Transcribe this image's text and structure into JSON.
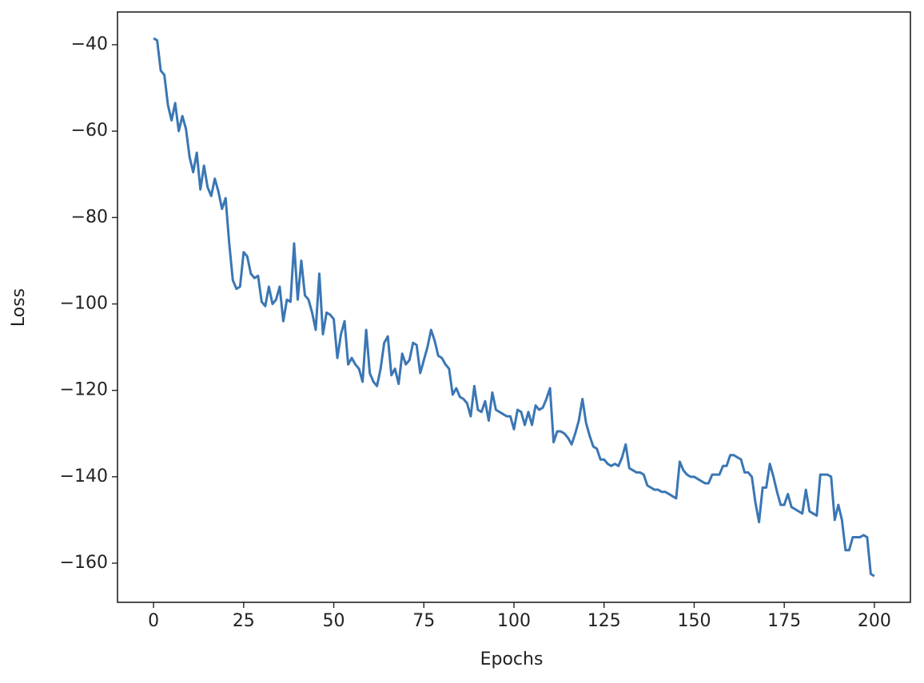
{
  "chart_data": {
    "type": "line",
    "x_label": "Epochs",
    "y_label": "Loss",
    "x": [
      0,
      1,
      2,
      3,
      4,
      5,
      6,
      7,
      8,
      9,
      10,
      11,
      12,
      13,
      14,
      15,
      16,
      17,
      18,
      19,
      20,
      21,
      22,
      23,
      24,
      25,
      26,
      27,
      28,
      29,
      30,
      31,
      32,
      33,
      34,
      35,
      36,
      37,
      38,
      39,
      40,
      41,
      42,
      43,
      44,
      45,
      46,
      47,
      48,
      49,
      50,
      51,
      52,
      53,
      54,
      55,
      56,
      57,
      58,
      59,
      60,
      61,
      62,
      63,
      64,
      65,
      66,
      67,
      68,
      69,
      70,
      71,
      72,
      73,
      74,
      75,
      76,
      77,
      78,
      79,
      80,
      81,
      82,
      83,
      84,
      85,
      86,
      87,
      88,
      89,
      90,
      91,
      92,
      93,
      94,
      95,
      96,
      97,
      98,
      99,
      100,
      101,
      102,
      103,
      104,
      105,
      106,
      107,
      108,
      109,
      110,
      111,
      112,
      113,
      114,
      115,
      116,
      117,
      118,
      119,
      120,
      121,
      122,
      123,
      124,
      125,
      126,
      127,
      128,
      129,
      130,
      131,
      132,
      133,
      134,
      135,
      136,
      137,
      138,
      139,
      140,
      141,
      142,
      143,
      144,
      145,
      146,
      147,
      148,
      149,
      150,
      151,
      152,
      153,
      154,
      155,
      156,
      157,
      158,
      159,
      160,
      161,
      162,
      163,
      164,
      165,
      166,
      167,
      168,
      169,
      170,
      171,
      172,
      173,
      174,
      175,
      176,
      177,
      178,
      179,
      180,
      181,
      182,
      183,
      184,
      185,
      186,
      187,
      188,
      189,
      190,
      191,
      192,
      193,
      194,
      195,
      196,
      197,
      198,
      199,
      200
    ],
    "series": [
      {
        "color": "#3a76b4",
        "values": [
          -38.5,
          -39,
          -46,
          -47,
          -54,
          -57.5,
          -53.5,
          -60,
          -56.5,
          -59.5,
          -66,
          -69.5,
          -65,
          -73.5,
          -68,
          -73,
          -75,
          -71,
          -74,
          -78,
          -75.5,
          -86,
          -94.5,
          -96.5,
          -96,
          -88,
          -89,
          -93,
          -94,
          -93.5,
          -99.5,
          -100.5,
          -96,
          -100,
          -99,
          -96,
          -104,
          -99,
          -99.5,
          -86,
          -99,
          -90,
          -98,
          -99,
          -102,
          -106,
          -93,
          -107,
          -102,
          -102.5,
          -103.5,
          -112.5,
          -107,
          -104,
          -114,
          -112.5,
          -114,
          -115,
          -118,
          -106,
          -116,
          -118,
          -119,
          -115,
          -109,
          -107.5,
          -116.5,
          -115,
          -118.5,
          -111.5,
          -114,
          -113,
          -109,
          -109.5,
          -116,
          -113,
          -110,
          -106,
          -108.5,
          -112,
          -112.5,
          -114,
          -115,
          -121,
          -119.5,
          -121.5,
          -122,
          -123,
          -126,
          -119,
          -124.5,
          -125,
          -122.5,
          -127,
          -120.5,
          -124.5,
          -125,
          -125.5,
          -126,
          -126,
          -129,
          -124.5,
          -125,
          -128,
          -125,
          -128,
          -123.5,
          -124.5,
          -124,
          -122,
          -119.5,
          -132,
          -129.5,
          -129.5,
          -130,
          -131,
          -132.5,
          -130,
          -127,
          -122,
          -127.5,
          -130.5,
          -133,
          -133.5,
          -136,
          -136,
          -137,
          -137.5,
          -137,
          -137.5,
          -135.5,
          -132.5,
          -138,
          -138.5,
          -139,
          -139,
          -139.5,
          -142,
          -142.5,
          -143,
          -143,
          -143.5,
          -143.5,
          -144,
          -144.5,
          -145,
          -136.5,
          -138.5,
          -139.5,
          -140,
          -140,
          -140.5,
          -141,
          -141.5,
          -141.5,
          -139.5,
          -139.5,
          -139.5,
          -137.5,
          -137.5,
          -135,
          -135,
          -135.5,
          -136,
          -139,
          -139,
          -140,
          -146,
          -150.5,
          -142.5,
          -142.5,
          -137,
          -140,
          -143.5,
          -146.5,
          -146.5,
          -144,
          -147,
          -147.5,
          -148,
          -148.5,
          -143,
          -148,
          -148.5,
          -149,
          -139.5,
          -139.5,
          -139.5,
          -140,
          -150,
          -146.5,
          -150,
          -157,
          -157,
          -154,
          -154,
          -154,
          -153.5,
          -154,
          -162.5,
          -163
        ]
      }
    ],
    "xlim": [
      -10,
      210
    ],
    "ylim": [
      -169.06,
      -32.42
    ],
    "xticks": [
      0,
      25,
      50,
      75,
      100,
      125,
      150,
      175,
      200
    ],
    "yticks": [
      {
        "value": -160,
        "label": "−160"
      },
      {
        "value": -140,
        "label": "−140"
      },
      {
        "value": -120,
        "label": "−120"
      },
      {
        "value": -100,
        "label": "−100"
      },
      {
        "value": -80,
        "label": "−80"
      },
      {
        "value": -60,
        "label": "−60"
      },
      {
        "value": -40,
        "label": "−40"
      }
    ]
  }
}
